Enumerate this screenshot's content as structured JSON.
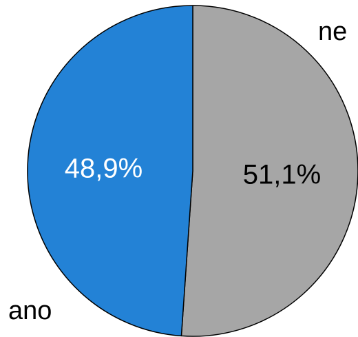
{
  "chart_data": {
    "type": "pie",
    "categories": [
      "ne",
      "ano"
    ],
    "values": [
      51.1,
      48.9
    ],
    "value_labels": [
      "51,1%",
      "48,9%"
    ],
    "colors": [
      "#a6a6a6",
      "#2382d6"
    ],
    "label_colors": [
      "#000000",
      "#ffffff"
    ],
    "start_angle_deg": 0,
    "direction": "clockwise",
    "title": "",
    "legend": "none"
  }
}
